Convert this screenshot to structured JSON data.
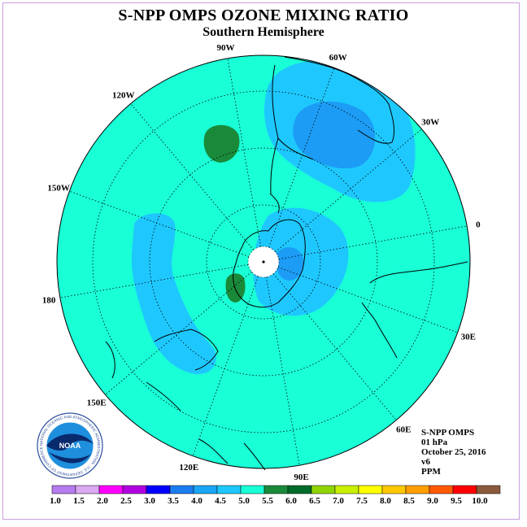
{
  "title": "S-NPP OMPS OZONE MIXING RATIO",
  "subtitle": "Southern Hemisphere",
  "longitude_labels": [
    "90W",
    "60W",
    "30W",
    "0",
    "30E",
    "60E",
    "90E",
    "120E",
    "150E",
    "180",
    "150W",
    "120W"
  ],
  "info": {
    "instrument": "S-NPP OMPS",
    "pressure": "01 hPa",
    "date": "October 25, 2016",
    "version": "v6",
    "units": "PPM"
  },
  "logo": {
    "text": "NOAA",
    "ring_text": "NATIONAL OCEANIC AND ATMOSPHERIC ADMINISTRATION · U.S. DEPARTMENT OF COMMERCE"
  },
  "colorbar": {
    "labels": [
      "1.0",
      "1.5",
      "2.0",
      "2.5",
      "3.0",
      "3.5",
      "4.0",
      "4.5",
      "5.0",
      "5.5",
      "6.0",
      "6.5",
      "7.0",
      "7.5",
      "8.0",
      "8.5",
      "9.0",
      "9.5",
      "10.0"
    ],
    "colors": [
      "#b57bef",
      "#dba8f2",
      "#ff00ff",
      "#b000e0",
      "#0000ff",
      "#1c7cf0",
      "#1ba5f5",
      "#1ec8ff",
      "#19ffd6",
      "#1a8a3a",
      "#006b2a",
      "#8fd400",
      "#c8f000",
      "#ffff00",
      "#ffc800",
      "#ff9e00",
      "#ff5a00",
      "#ff0000",
      "#8b5a3c"
    ]
  },
  "colors": {
    "background_field": "#19ffd6",
    "field_4_0": "#1ec8ff",
    "field_3_5": "#1c9cf5",
    "field_5_5": "#1a8a3a",
    "frame": "#c9a0dc"
  }
}
